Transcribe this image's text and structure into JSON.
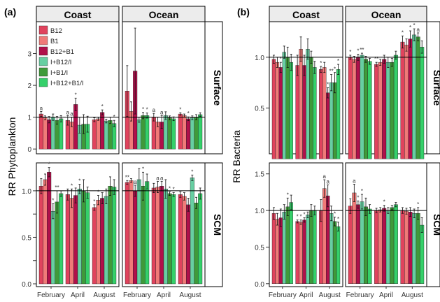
{
  "colors": {
    "B12": "#e0435d",
    "B1": "#f07a78",
    "B12+B1": "#b0104a",
    "I+B12/I": "#67cfa2",
    "I+B1/I": "#3f9a3a",
    "I+B12+B1/I": "#35d06a",
    "strip_bg": "#ececec",
    "bar_stroke": "#222222"
  },
  "figure": {
    "columns": [
      "Coast",
      "Ocean"
    ],
    "rows": [
      "Surface",
      "SCM"
    ],
    "months": [
      "February",
      "April",
      "August"
    ],
    "treatments": [
      "B12",
      "B1",
      "B12+B1",
      "I+B12/I",
      "I+B1/I",
      "I+B12+B1/I"
    ]
  },
  "chart_data": [
    {
      "type": "bar",
      "panel_label": "(a)",
      "ylabel": "RR Phytoplankton",
      "legend": {
        "placement": "top-left inside panel",
        "entries": [
          "B12",
          "B1",
          "B12+B1",
          "I+B12/I",
          "I+B1/I",
          "I+B12+B1/I"
        ]
      },
      "reference_line": 1,
      "rows": [
        {
          "name": "Surface",
          "ylim": [
            -0.15,
            4.0
          ],
          "yticks": [
            0,
            1,
            2,
            3
          ],
          "ytick_labels": [
            "0",
            "1",
            "2",
            "3"
          ],
          "cols": [
            {
              "name": "Coast",
              "groups": [
                {
                  "month": "February",
                  "values": [
                    1.1,
                    0.98,
                    0.92,
                    1.0,
                    0.9,
                    0.95
                  ],
                  "errors": [
                    0.08,
                    0.06,
                    0.1,
                    0.1,
                    0.12,
                    0.1
                  ],
                  "labels": [
                    "a",
                    "",
                    "",
                    "",
                    "",
                    ""
                  ]
                },
                {
                  "month": "April",
                  "values": [
                    0.9,
                    0.85,
                    1.4,
                    0.75,
                    0.78,
                    0.78
                  ],
                  "errors": [
                    0.15,
                    0.15,
                    0.2,
                    0.25,
                    0.3,
                    0.25
                  ],
                  "labels": [
                    "a",
                    "a",
                    "*",
                    "",
                    "",
                    ""
                  ]
                },
                {
                  "month": "August",
                  "values": [
                    0.92,
                    0.95,
                    1.15,
                    0.88,
                    0.9,
                    0.8
                  ],
                  "errors": [
                    0.06,
                    0.05,
                    0.08,
                    0.06,
                    0.1,
                    0.1
                  ],
                  "labels": [
                    "",
                    "",
                    "*",
                    "",
                    "",
                    "*"
                  ]
                }
              ]
            },
            {
              "name": "Ocean",
              "groups": [
                {
                  "month": "February",
                  "values": [
                    1.82,
                    1.18,
                    2.45,
                    0.92,
                    1.05,
                    1.05
                  ],
                  "errors": [
                    0.8,
                    0.3,
                    1.35,
                    0.08,
                    0.1,
                    0.08
                  ],
                  "labels": [
                    "",
                    "",
                    "",
                    "",
                    "*",
                    "*"
                  ]
                },
                {
                  "month": "April",
                  "values": [
                    1.0,
                    0.85,
                    0.85,
                    1.05,
                    0.98,
                    0.95
                  ],
                  "errors": [
                    0.12,
                    0.15,
                    0.2,
                    0.12,
                    0.06,
                    0.06
                  ],
                  "labels": [
                    "a",
                    "",
                    "a",
                    "",
                    "",
                    ""
                  ]
                },
                {
                  "month": "August",
                  "values": [
                    1.1,
                    1.05,
                    0.95,
                    0.98,
                    1.0,
                    1.08
                  ],
                  "errors": [
                    0.04,
                    0.05,
                    0.06,
                    0.06,
                    0.08,
                    0.06
                  ],
                  "labels": [
                    "*",
                    "",
                    "*",
                    "",
                    "",
                    ""
                  ]
                }
              ]
            }
          ]
        },
        {
          "name": "SCM",
          "ylim": [
            -0.03,
            1.3
          ],
          "yticks": [
            0.0,
            0.25,
            0.5,
            0.75,
            1.0
          ],
          "ytick_labels": [
            "0.0",
            "",
            "0.5",
            "",
            "1.0"
          ],
          "cols": [
            {
              "name": "Coast",
              "groups": [
                {
                  "month": "February",
                  "values": [
                    1.05,
                    1.12,
                    1.2,
                    0.78,
                    0.88,
                    0.97
                  ],
                  "errors": [
                    0.08,
                    0.06,
                    0.05,
                    0.08,
                    0.12,
                    0.03
                  ],
                  "labels": [
                    "",
                    "",
                    "*",
                    "*",
                    "**",
                    ""
                  ]
                },
                {
                  "month": "April",
                  "values": [
                    0.96,
                    0.92,
                    0.95,
                    1.02,
                    1.0,
                    0.98
                  ],
                  "errors": [
                    0.06,
                    0.1,
                    0.08,
                    0.05,
                    0.12,
                    0.06
                  ],
                  "labels": [
                    "",
                    "*",
                    "",
                    "*",
                    "",
                    ""
                  ]
                },
                {
                  "month": "August",
                  "values": [
                    0.82,
                    0.9,
                    0.92,
                    0.94,
                    1.05,
                    1.04
                  ],
                  "errors": [
                    0.03,
                    0.05,
                    0.06,
                    0.08,
                    0.1,
                    0.08
                  ],
                  "labels": [
                    "*",
                    "*",
                    "",
                    "",
                    "",
                    ""
                  ]
                }
              ]
            },
            {
              "name": "Ocean",
              "groups": [
                {
                  "month": "February",
                  "values": [
                    1.09,
                    1.11,
                    1.0,
                    1.12,
                    1.05,
                    1.1
                  ],
                  "errors": [
                    0.02,
                    0.02,
                    0.06,
                    0.12,
                    0.15,
                    0.08
                  ],
                  "labels": [
                    "**",
                    "",
                    "a",
                    "",
                    "*",
                    ""
                  ]
                },
                {
                  "month": "April",
                  "values": [
                    1.03,
                    1.04,
                    1.05,
                    1.02,
                    0.97,
                    0.96
                  ],
                  "errors": [
                    0.05,
                    0.06,
                    0.05,
                    0.1,
                    0.02,
                    0.02
                  ],
                  "labels": [
                    "",
                    "a",
                    "a",
                    "",
                    "*",
                    "*"
                  ]
                },
                {
                  "month": "August",
                  "values": [
                    0.96,
                    0.94,
                    0.85,
                    1.14,
                    0.87,
                    0.97
                  ],
                  "errors": [
                    0.03,
                    0.04,
                    0.07,
                    0.03,
                    0.06,
                    0.06
                  ],
                  "labels": [
                    "",
                    "",
                    "",
                    "*",
                    "",
                    ""
                  ]
                }
              ]
            }
          ]
        }
      ]
    },
    {
      "type": "bar",
      "panel_label": "(b)",
      "ylabel": "RR Bacteria",
      "reference_line": 1,
      "rows": [
        {
          "name": "Surface",
          "ylim": [
            0.05,
            1.35
          ],
          "yticks": [
            0.5,
            1.0
          ],
          "ytick_labels": [
            "0.5",
            "1.0"
          ],
          "cols": [
            {
              "name": "Coast",
              "groups": [
                {
                  "month": "February",
                  "values": [
                    0.98,
                    0.95,
                    0.9,
                    1.05,
                    1.0,
                    0.95
                  ],
                  "errors": [
                    0.04,
                    0.05,
                    0.05,
                    0.06,
                    0.1,
                    0.08
                  ],
                  "labels": [
                    "",
                    "",
                    "*",
                    "",
                    "",
                    ""
                  ]
                },
                {
                  "month": "April",
                  "values": [
                    0.92,
                    1.08,
                    0.92,
                    1.08,
                    1.0,
                    0.9
                  ],
                  "errors": [
                    0.1,
                    0.12,
                    0.1,
                    0.1,
                    0.06,
                    0.06
                  ],
                  "labels": [
                    "",
                    "",
                    "",
                    "",
                    "",
                    ""
                  ]
                },
                {
                  "month": "August",
                  "values": [
                    0.88,
                    0.9,
                    0.65,
                    0.75,
                    0.75,
                    0.88
                  ],
                  "errors": [
                    0.03,
                    0.05,
                    0.05,
                    0.08,
                    0.1,
                    0.05
                  ],
                  "labels": [
                    "*",
                    "",
                    "*",
                    "**",
                    "*",
                    "*"
                  ]
                }
              ]
            },
            {
              "name": "Ocean",
              "groups": [
                {
                  "month": "February",
                  "values": [
                    1.0,
                    0.98,
                    1.0,
                    1.02,
                    0.98,
                    0.96
                  ],
                  "errors": [
                    0.02,
                    0.03,
                    0.03,
                    0.02,
                    0.03,
                    0.03
                  ],
                  "labels": [
                    "*",
                    "",
                    "*",
                    "**",
                    "",
                    ""
                  ]
                },
                {
                  "month": "April",
                  "values": [
                    0.93,
                    0.95,
                    0.98,
                    0.95,
                    0.95,
                    1.02
                  ],
                  "errors": [
                    0.02,
                    0.03,
                    0.04,
                    0.05,
                    0.04,
                    0.04
                  ],
                  "labels": [
                    "**",
                    "",
                    "",
                    "",
                    "",
                    ""
                  ]
                },
                {
                  "month": "August",
                  "values": [
                    1.15,
                    1.12,
                    1.18,
                    1.22,
                    1.2,
                    1.1
                  ],
                  "errors": [
                    0.06,
                    0.06,
                    0.08,
                    0.06,
                    0.04,
                    0.06
                  ],
                  "labels": [
                    "*",
                    "",
                    "*",
                    "*",
                    "a",
                    ""
                  ]
                }
              ]
            }
          ]
        },
        {
          "name": "SCM",
          "ylim": [
            -0.04,
            1.65
          ],
          "yticks": [
            0.0,
            0.5,
            1.0,
            1.5
          ],
          "ytick_labels": [
            "0.0",
            "0.5",
            "1.0",
            "1.5"
          ],
          "cols": [
            {
              "name": "Coast",
              "groups": [
                {
                  "month": "February",
                  "values": [
                    0.96,
                    0.88,
                    0.9,
                    0.98,
                    1.05,
                    1.11
                  ],
                  "errors": [
                    0.08,
                    0.08,
                    0.12,
                    0.1,
                    0.12,
                    0.1
                  ],
                  "labels": [
                    "",
                    "",
                    "",
                    "",
                    "*",
                    ""
                  ]
                },
                {
                  "month": "April",
                  "values": [
                    0.85,
                    0.84,
                    0.87,
                    0.94,
                    1.0,
                    1.0
                  ],
                  "errors": [
                    0.02,
                    0.03,
                    0.03,
                    0.04,
                    0.08,
                    0.06
                  ],
                  "labels": [
                    "*",
                    "*",
                    "*",
                    "",
                    "",
                    ""
                  ]
                },
                {
                  "month": "August",
                  "values": [
                    1.0,
                    1.3,
                    1.2,
                    0.96,
                    0.85,
                    0.78
                  ],
                  "errors": [
                    0.15,
                    0.12,
                    0.15,
                    0.1,
                    0.06,
                    0.06
                  ],
                  "labels": [
                    "",
                    "a",
                    "a",
                    "",
                    "*",
                    "*"
                  ]
                }
              ]
            },
            {
              "name": "Ocean",
              "groups": [
                {
                  "month": "February",
                  "values": [
                    1.06,
                    1.24,
                    1.08,
                    1.12,
                    1.05,
                    1.02
                  ],
                  "errors": [
                    0.1,
                    0.12,
                    0.05,
                    0.1,
                    0.12,
                    0.06
                  ],
                  "labels": [
                    "",
                    "a",
                    "*",
                    "*",
                    "",
                    ""
                  ]
                },
                {
                  "month": "April",
                  "values": [
                    1.0,
                    1.01,
                    1.03,
                    1.0,
                    1.04,
                    1.08
                  ],
                  "errors": [
                    0.03,
                    0.03,
                    0.04,
                    0.04,
                    0.03,
                    0.03
                  ],
                  "labels": [
                    "",
                    "",
                    "*",
                    "",
                    "",
                    ""
                  ]
                },
                {
                  "month": "August",
                  "values": [
                    1.0,
                    0.99,
                    0.98,
                    0.96,
                    0.96,
                    0.8
                  ],
                  "errors": [
                    0.04,
                    0.04,
                    0.06,
                    0.06,
                    0.08,
                    0.1
                  ],
                  "labels": [
                    "",
                    "",
                    "",
                    "",
                    "*",
                    ""
                  ]
                }
              ]
            }
          ]
        }
      ]
    }
  ]
}
